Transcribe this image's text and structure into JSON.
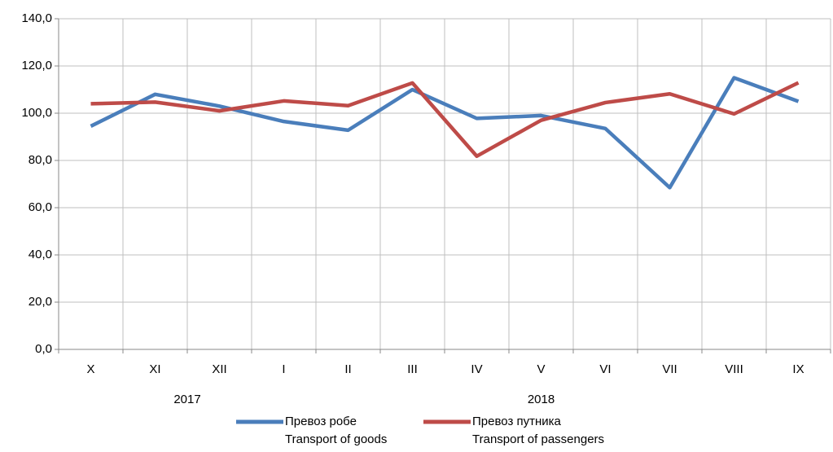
{
  "chart_data": {
    "type": "line",
    "categories": [
      "X",
      "XI",
      "XII",
      "I",
      "II",
      "III",
      "IV",
      "V",
      "VI",
      "VII",
      "VIII",
      "IX"
    ],
    "category_groups": [
      {
        "label": "2017",
        "count": 3
      },
      {
        "label": "2018",
        "count": 9
      }
    ],
    "series": [
      {
        "name": [
          "Превоз робе",
          "Transport of goods"
        ],
        "color": "#4a7ebb",
        "values": [
          94.5,
          108.0,
          103.0,
          96.5,
          92.8,
          110.0,
          97.8,
          99.0,
          93.5,
          68.5,
          115.0,
          105.0
        ]
      },
      {
        "name": [
          "Превоз путника",
          "Transport of passengers"
        ],
        "color": "#be4b48",
        "values": [
          104.0,
          104.7,
          101.0,
          105.2,
          103.2,
          112.8,
          81.8,
          97.0,
          104.5,
          108.2,
          99.7,
          112.9
        ]
      }
    ],
    "ylim": [
      0,
      140
    ],
    "yticks": [
      {
        "value": 0,
        "label": "0,0"
      },
      {
        "value": 20,
        "label": "20,0"
      },
      {
        "value": 40,
        "label": "40,0"
      },
      {
        "value": 60,
        "label": "60,0"
      },
      {
        "value": 80,
        "label": "80,0"
      },
      {
        "value": 100,
        "label": "100,0"
      },
      {
        "value": 120,
        "label": "120,0"
      },
      {
        "value": 140,
        "label": "140,0"
      }
    ],
    "grid": true,
    "legend": "bottom"
  }
}
